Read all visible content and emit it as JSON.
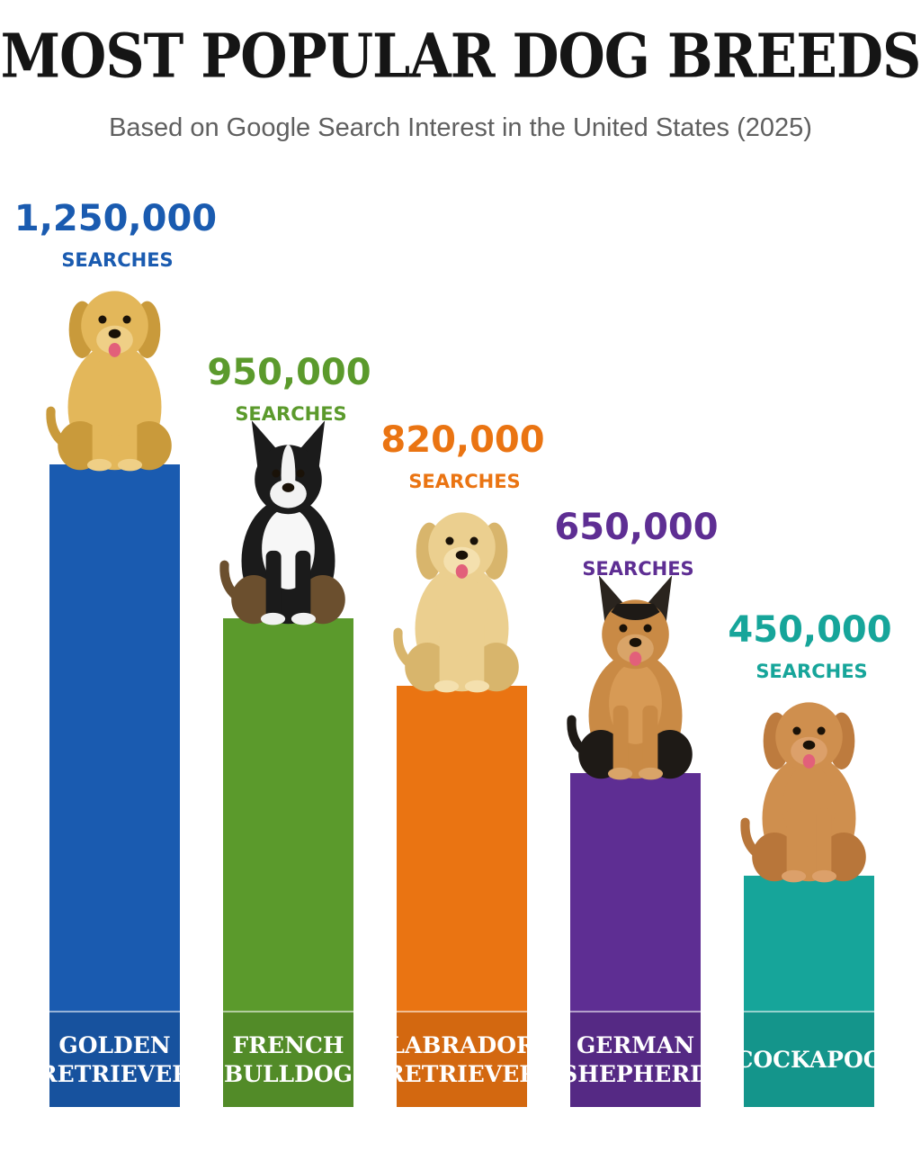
{
  "title": "MOST POPULAR DOG BREEDS",
  "subtitle": "Based on Google Search Interest in the United States (2025)",
  "chart_data": {
    "type": "bar",
    "title": "MOST POPULAR DOG BREEDS",
    "subtitle": "Based on Google Search Interest in the United States (2025)",
    "xlabel": "",
    "ylabel": "",
    "unit_label": "SEARCHES",
    "grid": false,
    "legend": "none",
    "categories": [
      [
        "GOLDEN",
        "RETRIEVER"
      ],
      [
        "FRENCH",
        "BULLDOG"
      ],
      [
        "LABRADOR",
        "RETRIEVER"
      ],
      [
        "GERMAN",
        "SHEPHERD"
      ],
      [
        "COCKAPOO"
      ]
    ],
    "values": [
      1250000,
      950000,
      820000,
      650000,
      450000
    ],
    "value_labels": [
      "1,250,000",
      "950,000",
      "820,000",
      "650,000",
      "450,000"
    ],
    "colors": [
      "#1a5bb0",
      "#5b9a2c",
      "#ea7412",
      "#5e2e93",
      "#16a59a"
    ],
    "label_colors": [
      "#1a5bb0",
      "#5b9a2c",
      "#ea7412",
      "#5e2e93",
      "#16a59a"
    ],
    "icons": [
      "golden-retriever-icon",
      "french-bulldog-icon",
      "labrador-retriever-icon",
      "german-shepherd-icon",
      "cockapoo-icon"
    ]
  }
}
